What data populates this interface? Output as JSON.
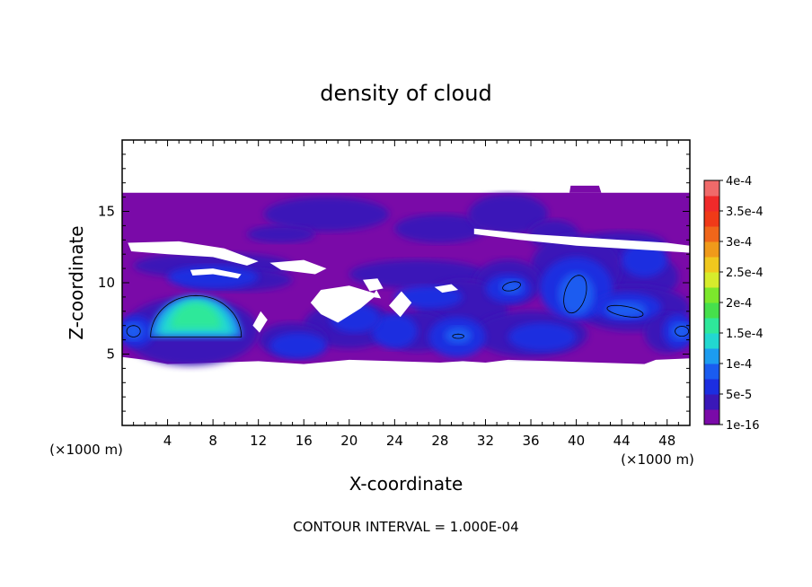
{
  "chart_data": {
    "type": "heatmap",
    "title": "density of cloud",
    "xlabel": "X-coordinate",
    "ylabel": "Z-coordinate",
    "x_unit_left": "(×1000 m)",
    "x_unit_right": "(×1000 m)",
    "xlim": [
      0,
      50
    ],
    "ylim": [
      0,
      20
    ],
    "x_ticks": [
      4,
      8,
      12,
      16,
      20,
      24,
      28,
      32,
      36,
      40,
      44,
      48
    ],
    "y_ticks": [
      5,
      10,
      15
    ],
    "footer": "CONTOUR INTERVAL = 1.000E-04",
    "colorbar": {
      "labels": [
        "1e-16",
        "5e-5",
        "1e-4",
        "1.5e-4",
        "2e-4",
        "2.5e-4",
        "3e-4",
        "3.5e-4",
        "4e-4"
      ],
      "colors": [
        "#7a0aa8",
        "#3a18b8",
        "#1c2ee0",
        "#1a5cf0",
        "#1c9cf0",
        "#22d8d0",
        "#2ee89a",
        "#46e04c",
        "#7ce82c",
        "#d6ec2c",
        "#f0c81e",
        "#f09a1a",
        "#f0661a",
        "#f03a18",
        "#f02a2a",
        "#f06a6a"
      ]
    },
    "cloud_layer_z": [
      4.5,
      16.3
    ],
    "regions": [
      {
        "label": "upper cloud band",
        "x": [
          0,
          50
        ],
        "z": [
          4.5,
          16.3
        ],
        "level": "1e-16"
      },
      {
        "label": "core near x=6.5",
        "x": [
          2.5,
          10.5
        ],
        "z": [
          6.2,
          9.0
        ],
        "level": "1.5e-4"
      },
      {
        "label": "core near x=40",
        "x": [
          38.3,
          41.3
        ],
        "z": [
          8.0,
          10.5
        ],
        "level": "1e-4"
      },
      {
        "label": "core near x=44",
        "x": [
          42.7,
          46.0
        ],
        "z": [
          7.6,
          8.5
        ],
        "level": "1e-4"
      },
      {
        "label": "core near x=34",
        "x": [
          33.3,
          35.3
        ],
        "z": [
          9.3,
          10.1
        ],
        "level": "1e-4"
      }
    ]
  }
}
